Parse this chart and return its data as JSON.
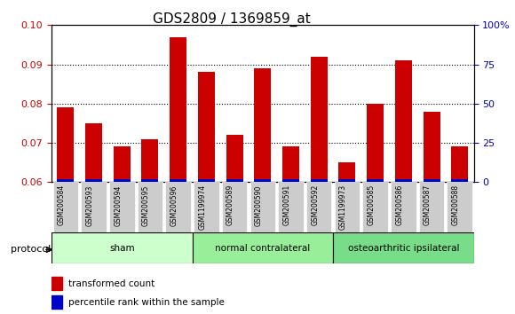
{
  "title": "GDS2809 / 1369859_at",
  "categories": [
    "GSM200584",
    "GSM200593",
    "GSM200594",
    "GSM200595",
    "GSM200596",
    "GSM1199974",
    "GSM200589",
    "GSM200590",
    "GSM200591",
    "GSM200592",
    "GSM1199973",
    "GSM200585",
    "GSM200586",
    "GSM200587",
    "GSM200588"
  ],
  "red_values": [
    0.079,
    0.075,
    0.069,
    0.071,
    0.097,
    0.088,
    0.072,
    0.089,
    0.069,
    0.092,
    0.065,
    0.08,
    0.091,
    0.078,
    0.069
  ],
  "blue_values": [
    0.061,
    0.061,
    0.061,
    0.061,
    0.061,
    0.061,
    0.061,
    0.061,
    0.061,
    0.061,
    0.061,
    0.061,
    0.061,
    0.061,
    0.061
  ],
  "ylim_left": [
    0.06,
    0.1
  ],
  "ylim_right": [
    0,
    100
  ],
  "yticks_left": [
    0.06,
    0.07,
    0.08,
    0.09,
    0.1
  ],
  "yticks_right": [
    0,
    25,
    50,
    75,
    100
  ],
  "ytick_labels_right": [
    "0",
    "25",
    "50",
    "75",
    "100%"
  ],
  "groups": [
    {
      "label": "sham",
      "start": 0,
      "end": 5,
      "color": "#ccffcc"
    },
    {
      "label": "normal contralateral",
      "start": 5,
      "end": 10,
      "color": "#99ff99"
    },
    {
      "label": "osteoarthritic ipsilateral",
      "start": 10,
      "end": 15,
      "color": "#66dd88"
    }
  ],
  "protocol_label": "protocol",
  "legend_red": "transformed count",
  "legend_blue": "percentile rank within the sample",
  "bar_width": 0.6,
  "red_color": "#cc0000",
  "blue_color": "#0000cc",
  "axis_label_color_left": "#cc0000",
  "axis_label_color_right": "#0000cc",
  "bg_color": "#ffffff",
  "plot_bg_color": "#ffffff",
  "grid_color": "#000000",
  "tick_label_bg": "#dddddd"
}
